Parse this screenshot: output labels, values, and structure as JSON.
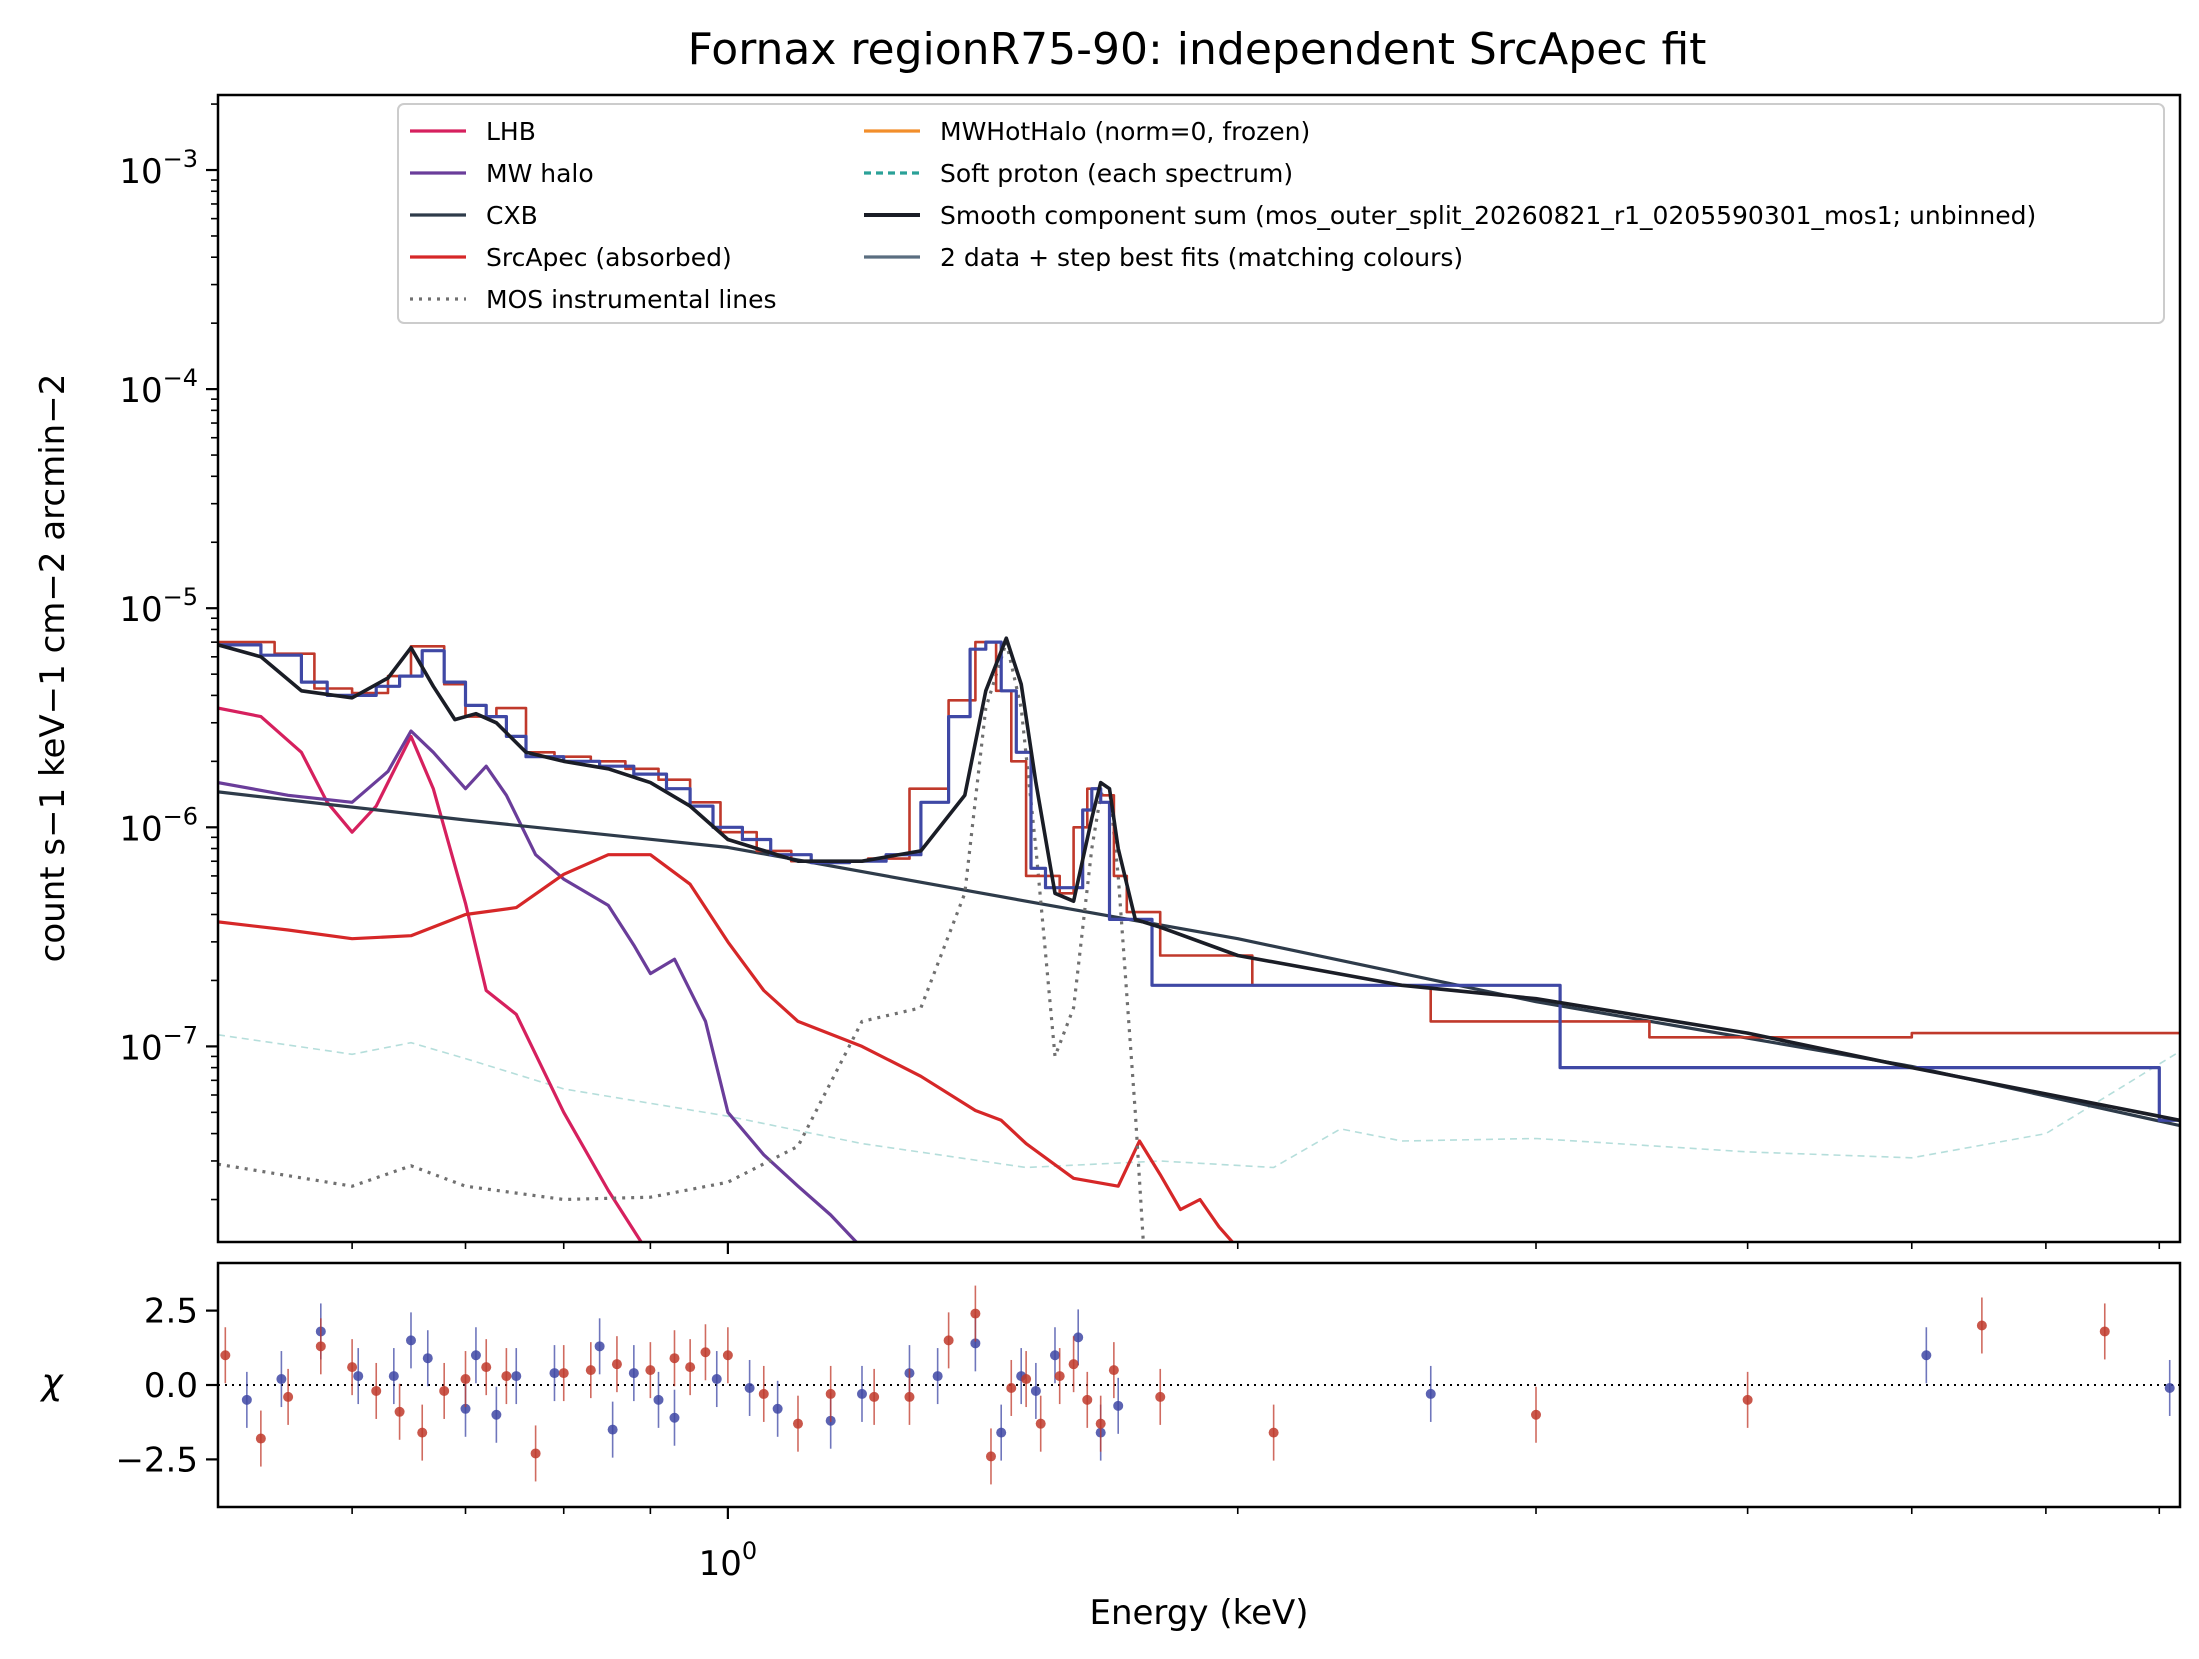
{
  "title": "Fornax regionR75-90: independent SrcApec fit",
  "colors": {
    "lhb": "#d6205e",
    "mw_halo": "#6a3d9a",
    "cxb": "#2e3b4a",
    "srcapec": "#d62728",
    "instr": "#707070",
    "mwhot": "#f28e2b",
    "soft_proton": "#2aa198",
    "sum": "#1a1d26",
    "data_blue": "#3f48a5",
    "data_red": "#c0392b",
    "steps_legend": "#5a6e80"
  },
  "chart_data": [
    {
      "type": "line",
      "panel": "spectrum",
      "title": "Fornax regionR75-90: independent SrcApec fit",
      "xlabel": "Energy (keV)",
      "ylabel": "count s−1 keV−1 cm−2 arcmin−2",
      "xscale": "log",
      "yscale": "log",
      "xlim": [
        0.5,
        7.2
      ],
      "ylim": [
        1.28e-08,
        0.0022
      ],
      "xticks": [
        {
          "value": 1.0,
          "label": "10",
          "exp": "0"
        }
      ],
      "yticks": [
        {
          "value": 0.001,
          "label": "10",
          "exp": "−3"
        },
        {
          "value": 0.0001,
          "label": "10",
          "exp": "−4"
        },
        {
          "value": 1e-05,
          "label": "10",
          "exp": "−5"
        },
        {
          "value": 1e-06,
          "label": "10",
          "exp": "−6"
        },
        {
          "value": 1e-07,
          "label": "10",
          "exp": "−7"
        }
      ],
      "legend_position": "top",
      "legend": {
        "col1": [
          "LHB",
          "MW halo",
          "CXB",
          "SrcApec (absorbed)",
          "MOS instrumental lines"
        ],
        "col2": [
          "MWHotHalo (norm=0, frozen)",
          "Soft proton (each spectrum)",
          "Smooth component sum (mos_outer_split_20260821_r1_0205590301_mos1; unbinned)",
          "2 data + step best fits (matching colours)"
        ]
      },
      "series": [
        {
          "name": "LHB",
          "x": [
            0.5,
            0.53,
            0.56,
            0.58,
            0.6,
            0.62,
            0.65,
            0.67,
            0.7,
            0.72,
            0.75,
            0.8,
            0.85,
            0.9
          ],
          "y": [
            3.5e-06,
            3.2e-06,
            2.2e-06,
            1.3e-06,
            9.5e-07,
            1.25e-06,
            2.6e-06,
            1.5e-06,
            4.5e-07,
            1.8e-07,
            1.4e-07,
            5e-08,
            2.2e-08,
            1.1e-08
          ]
        },
        {
          "name": "MW halo",
          "x": [
            0.5,
            0.55,
            0.6,
            0.63,
            0.65,
            0.67,
            0.7,
            0.72,
            0.74,
            0.77,
            0.8,
            0.85,
            0.88,
            0.9,
            0.93,
            0.97,
            1.0,
            1.05,
            1.1,
            1.15,
            1.2,
            1.3
          ],
          "y": [
            1.6e-06,
            1.4e-06,
            1.3e-06,
            1.8e-06,
            2.75e-06,
            2.2e-06,
            1.5e-06,
            1.9e-06,
            1.4e-06,
            7.5e-07,
            5.8e-07,
            4.4e-07,
            2.9e-07,
            2.15e-07,
            2.5e-07,
            1.3e-07,
            5e-08,
            3.2e-08,
            2.3e-08,
            1.7e-08,
            1.2e-08,
            1e-08
          ]
        },
        {
          "name": "CXB",
          "x": [
            0.5,
            0.7,
            1.0,
            1.5,
            2.0,
            3.0,
            5.0,
            7.2
          ],
          "y": [
            1.45e-06,
            1.08e-06,
            8.1e-07,
            4.6e-07,
            3.1e-07,
            1.6e-07,
            8.1e-08,
            4.35e-08
          ]
        },
        {
          "name": "SrcApec (absorbed)",
          "x": [
            0.5,
            0.55,
            0.6,
            0.65,
            0.7,
            0.75,
            0.8,
            0.85,
            0.9,
            0.95,
            1.0,
            1.05,
            1.1,
            1.2,
            1.3,
            1.4,
            1.45,
            1.5,
            1.6,
            1.7,
            1.75,
            1.8,
            1.85,
            1.9,
            1.95,
            2.0,
            2.05,
            2.1,
            2.2,
            2.3
          ],
          "y": [
            3.7e-07,
            3.4e-07,
            3.1e-07,
            3.2e-07,
            4e-07,
            4.3e-07,
            6.1e-07,
            7.5e-07,
            7.5e-07,
            5.5e-07,
            3e-07,
            1.8e-07,
            1.3e-07,
            1e-07,
            7.3e-08,
            5.1e-08,
            4.6e-08,
            3.6e-08,
            2.5e-08,
            2.3e-08,
            3.7e-08,
            2.6e-08,
            1.8e-08,
            2e-08,
            1.5e-08,
            1.2e-08,
            1e-08,
            1.05e-08,
            1.05e-08,
            1e-08
          ]
        },
        {
          "name": "MOS instrumental lines",
          "x": [
            0.5,
            0.6,
            0.65,
            0.7,
            0.8,
            0.9,
            1.0,
            1.1,
            1.2,
            1.3,
            1.38,
            1.42,
            1.46,
            1.49,
            1.52,
            1.56,
            1.6,
            1.64,
            1.66,
            1.68,
            1.7,
            1.74,
            1.76,
            1.8,
            1.85,
            1.9
          ],
          "y": [
            2.9e-08,
            2.3e-08,
            2.85e-08,
            2.3e-08,
            2e-08,
            2.05e-08,
            2.4e-08,
            3.5e-08,
            1.3e-07,
            1.5e-07,
            5e-07,
            3.5e-06,
            7e-06,
            3.5e-06,
            8e-07,
            9e-08,
            1.5e-07,
            8e-07,
            1.4e-06,
            1.5e-06,
            6e-07,
            5e-08,
            1.2e-08,
            1e-08,
            1e-08,
            1e-08
          ]
        },
        {
          "name": "Soft proton (each spectrum)",
          "x": [
            0.5,
            0.6,
            0.65,
            0.7,
            0.8,
            1.0,
            1.2,
            1.5,
            1.8,
            2.1,
            2.3,
            2.5,
            3.0,
            4.0,
            5.0,
            6.0,
            7.2
          ],
          "y": [
            1.13e-07,
            9.2e-08,
            1.04e-07,
            8.8e-08,
            6.4e-08,
            4.8e-08,
            3.6e-08,
            2.8e-08,
            3e-08,
            2.8e-08,
            4.2e-08,
            3.7e-08,
            3.8e-08,
            3.3e-08,
            3.1e-08,
            4e-08,
            9.5e-08
          ]
        },
        {
          "name": "Smooth component sum (mos_outer_split_20260821_r1_0205590301_mos1; unbinned)",
          "x": [
            0.5,
            0.53,
            0.56,
            0.6,
            0.63,
            0.65,
            0.67,
            0.69,
            0.71,
            0.73,
            0.76,
            0.8,
            0.85,
            0.9,
            0.95,
            1.0,
            1.1,
            1.2,
            1.3,
            1.38,
            1.42,
            1.46,
            1.49,
            1.52,
            1.56,
            1.6,
            1.64,
            1.66,
            1.68,
            1.7,
            1.74,
            1.8,
            2.0,
            2.5,
            3.0,
            4.0,
            5.0,
            7.2
          ],
          "y": [
            6.8e-06,
            6e-06,
            4.2e-06,
            3.9e-06,
            4.8e-06,
            6.6e-06,
            4.4e-06,
            3.1e-06,
            3.3e-06,
            3e-06,
            2.2e-06,
            2e-06,
            1.85e-06,
            1.6e-06,
            1.25e-06,
            8.8e-07,
            7e-07,
            7e-07,
            7.8e-07,
            1.4e-06,
            4.2e-06,
            7.3e-06,
            4.5e-06,
            1.6e-06,
            5e-07,
            4.6e-07,
            1.1e-06,
            1.6e-06,
            1.5e-06,
            8e-07,
            3.8e-07,
            3.5e-07,
            2.6e-07,
            1.9e-07,
            1.65e-07,
            1.15e-07,
            8e-08,
            4.6e-08
          ]
        },
        {
          "name": "data 1 (blue)",
          "style": "step",
          "edges": [
            0.5,
            0.53,
            0.56,
            0.58,
            0.6,
            0.62,
            0.64,
            0.66,
            0.68,
            0.7,
            0.72,
            0.74,
            0.76,
            0.8,
            0.84,
            0.88,
            0.92,
            0.95,
            0.98,
            1.02,
            1.06,
            1.12,
            1.18,
            1.24,
            1.3,
            1.35,
            1.39,
            1.42,
            1.45,
            1.48,
            1.51,
            1.54,
            1.58,
            1.62,
            1.64,
            1.66,
            1.68,
            1.7,
            1.73,
            1.78,
            2.02,
            2.5,
            3.1,
            7.0,
            7.2
          ],
          "values": [
            6.8e-06,
            6.1e-06,
            4.6e-06,
            4e-06,
            4e-06,
            4.4e-06,
            4.9e-06,
            6.4e-06,
            4.6e-06,
            3.6e-06,
            3.2e-06,
            2.6e-06,
            2.1e-06,
            2e-06,
            1.9e-06,
            1.75e-06,
            1.5e-06,
            1.25e-06,
            1e-06,
            8.8e-07,
            7.5e-07,
            6.9e-07,
            7e-07,
            7.5e-07,
            1.3e-06,
            3.2e-06,
            6.5e-06,
            7e-06,
            4.2e-06,
            2.2e-06,
            6.5e-07,
            5.3e-07,
            5.3e-07,
            1.2e-06,
            1.5e-06,
            1.3e-06,
            3.8e-07,
            3.8e-07,
            3.8e-07,
            1.9e-07,
            1.9e-07,
            1.9e-07,
            8e-08,
            4.6e-08
          ]
        },
        {
          "name": "data 2 (red)",
          "style": "step",
          "edges": [
            0.5,
            0.54,
            0.57,
            0.6,
            0.63,
            0.65,
            0.68,
            0.7,
            0.73,
            0.76,
            0.79,
            0.83,
            0.87,
            0.91,
            0.95,
            0.99,
            1.04,
            1.09,
            1.15,
            1.21,
            1.28,
            1.35,
            1.4,
            1.44,
            1.47,
            1.5,
            1.53,
            1.57,
            1.6,
            1.63,
            1.66,
            1.69,
            1.72,
            1.8,
            2.04,
            2.6,
            3.5,
            5.0,
            7.2
          ],
          "values": [
            7e-06,
            6.2e-06,
            4.3e-06,
            4.1e-06,
            4.9e-06,
            6.7e-06,
            4.5e-06,
            3.2e-06,
            3.5e-06,
            2.2e-06,
            2.1e-06,
            2e-06,
            1.85e-06,
            1.65e-06,
            1.3e-06,
            9.5e-07,
            7.8e-07,
            7e-07,
            7e-07,
            7.2e-07,
            1.5e-06,
            3.8e-06,
            7e-06,
            4.2e-06,
            2e-06,
            6e-07,
            6e-07,
            5e-07,
            1e-06,
            1.5e-06,
            1.4e-06,
            6e-07,
            4.1e-07,
            2.6e-07,
            1.9e-07,
            1.3e-07,
            1.1e-07,
            1.15e-07
          ]
        }
      ]
    },
    {
      "type": "scatter",
      "panel": "residuals",
      "xlabel": "Energy (keV)",
      "ylabel": "χ",
      "xscale": "log",
      "xlim": [
        0.5,
        7.2
      ],
      "ylim": [
        -4.1,
        4.1
      ],
      "yticks": [
        {
          "value": 2.5,
          "label": "2.5"
        },
        {
          "value": 0,
          "label": "0.0"
        },
        {
          "value": -2.5,
          "label": "−2.5"
        }
      ],
      "series": [
        {
          "name": "data 1 (blue)",
          "x": [
            0.52,
            0.545,
            0.575,
            0.605,
            0.635,
            0.65,
            0.665,
            0.7,
            0.71,
            0.73,
            0.75,
            0.79,
            0.84,
            0.855,
            0.88,
            0.91,
            0.93,
            0.985,
            1.03,
            1.07,
            1.15,
            1.2,
            1.28,
            1.33,
            1.4,
            1.45,
            1.49,
            1.52,
            1.56,
            1.61,
            1.66,
            1.7,
            2.6,
            5.1,
            7.1
          ],
          "y": [
            -0.5,
            0.2,
            1.8,
            0.3,
            0.3,
            1.5,
            0.9,
            -0.8,
            1.0,
            -1.0,
            0.3,
            0.4,
            1.3,
            -1.5,
            0.4,
            -0.5,
            -1.1,
            0.2,
            -0.1,
            -0.8,
            -1.2,
            -0.3,
            0.4,
            0.3,
            1.4,
            -1.6,
            0.3,
            -0.2,
            1.0,
            1.6,
            -1.6,
            -0.7,
            -0.3,
            1.0,
            -0.1
          ]
        },
        {
          "name": "data 2 (red)",
          "x": [
            0.505,
            0.53,
            0.55,
            0.575,
            0.6,
            0.62,
            0.64,
            0.66,
            0.68,
            0.7,
            0.72,
            0.74,
            0.77,
            0.8,
            0.83,
            0.86,
            0.9,
            0.93,
            0.95,
            0.97,
            1.0,
            1.05,
            1.1,
            1.15,
            1.22,
            1.28,
            1.35,
            1.4,
            1.43,
            1.47,
            1.5,
            1.53,
            1.57,
            1.6,
            1.63,
            1.66,
            1.69,
            1.8,
            2.1,
            3.0,
            4.0,
            5.5,
            6.5
          ],
          "y": [
            1.0,
            -1.8,
            -0.4,
            1.3,
            0.6,
            -0.2,
            -0.9,
            -1.6,
            -0.2,
            0.2,
            0.6,
            0.3,
            -2.3,
            0.4,
            0.5,
            0.7,
            0.5,
            0.9,
            0.6,
            1.1,
            1.0,
            -0.3,
            -1.3,
            -0.3,
            -0.4,
            -0.4,
            1.5,
            2.4,
            -2.4,
            -0.1,
            0.2,
            -1.3,
            0.3,
            0.7,
            -0.5,
            -1.3,
            0.5,
            -0.4,
            -1.6,
            -1.0,
            -0.5,
            2.0,
            1.8
          ]
        }
      ]
    }
  ]
}
